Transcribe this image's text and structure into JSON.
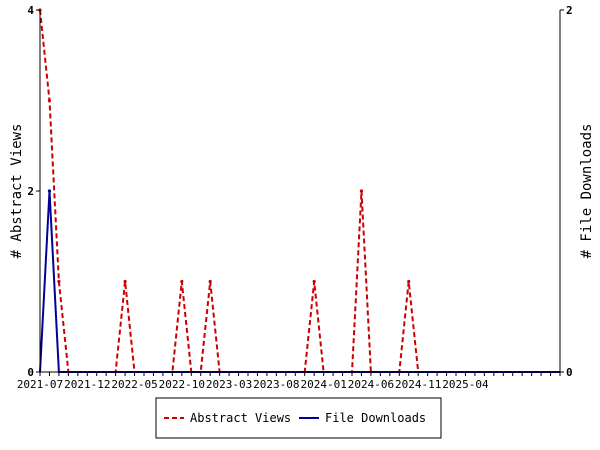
{
  "chart_data": {
    "type": "line",
    "xlabel": "",
    "ylabel_left": "# Abstract Views",
    "ylabel_right": "# File Downloads",
    "y_left_range": [
      0,
      4
    ],
    "y_left_ticks": [
      0,
      2,
      4
    ],
    "y_right_range": [
      0,
      2
    ],
    "y_right_ticks": [
      0,
      2
    ],
    "x_range": [
      "2021-07",
      "2026-02"
    ],
    "x_tick_labels": [
      "2021-07",
      "2021-12",
      "2022-05",
      "2022-10",
      "2023-03",
      "2023-08",
      "2024-01",
      "2024-06",
      "2024-11",
      "2025-04"
    ],
    "grid": false,
    "legend_position": "bottom",
    "series": [
      {
        "name": "Abstract Views",
        "axis": "left",
        "color": "#cc0000",
        "style": "dashed",
        "points": [
          [
            "2021-07",
            4
          ],
          [
            "2021-08",
            3
          ],
          [
            "2021-09",
            1
          ],
          [
            "2021-10",
            0
          ],
          [
            "2022-03",
            0
          ],
          [
            "2022-04",
            1
          ],
          [
            "2022-05",
            0
          ],
          [
            "2022-09",
            0
          ],
          [
            "2022-10",
            1
          ],
          [
            "2022-11",
            0
          ],
          [
            "2022-12",
            0
          ],
          [
            "2023-01",
            1
          ],
          [
            "2023-02",
            0
          ],
          [
            "2023-11",
            0
          ],
          [
            "2023-12",
            1
          ],
          [
            "2024-01",
            0
          ],
          [
            "2024-04",
            0
          ],
          [
            "2024-05",
            2
          ],
          [
            "2024-06",
            0
          ],
          [
            "2024-09",
            0
          ],
          [
            "2024-10",
            1
          ],
          [
            "2024-11",
            0
          ],
          [
            "2026-02",
            0
          ]
        ]
      },
      {
        "name": "File Downloads",
        "axis": "right",
        "color": "#000099",
        "style": "solid",
        "points": [
          [
            "2021-07",
            0
          ],
          [
            "2021-08",
            1
          ],
          [
            "2021-09",
            0
          ],
          [
            "2021-10",
            0
          ],
          [
            "2026-02",
            0
          ]
        ]
      }
    ]
  }
}
